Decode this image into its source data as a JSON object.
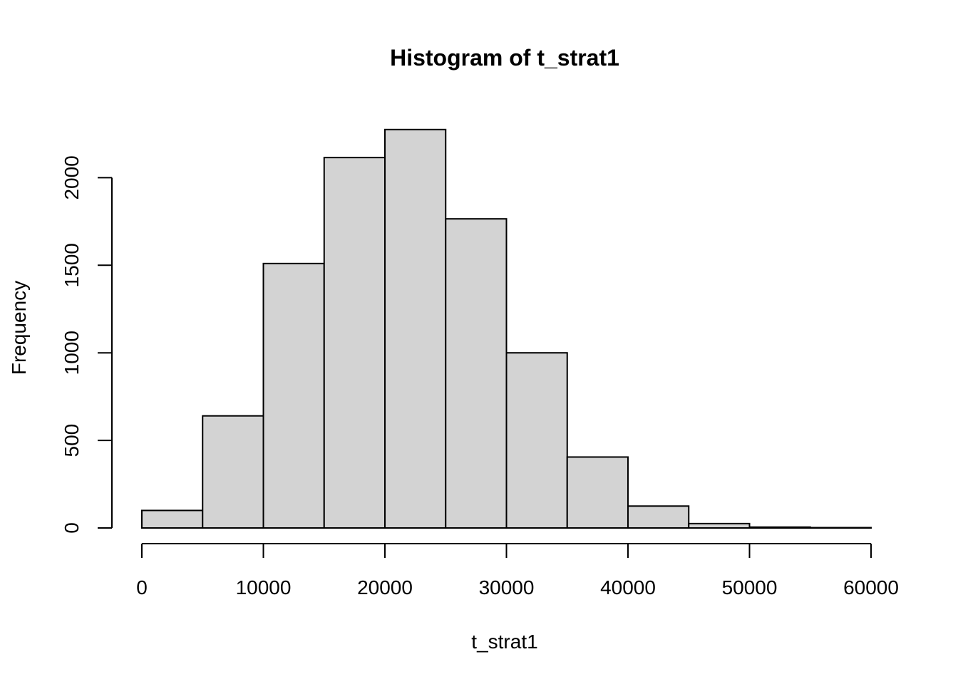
{
  "chart_data": {
    "type": "bar",
    "title": "Histogram of t_strat1",
    "xlabel": "t_strat1",
    "ylabel": "Frequency",
    "bin_edges": [
      0,
      5000,
      10000,
      15000,
      20000,
      25000,
      30000,
      35000,
      40000,
      45000,
      50000,
      55000,
      60000
    ],
    "values": [
      100,
      640,
      1510,
      2115,
      2275,
      1765,
      1000,
      405,
      125,
      25,
      5,
      2
    ],
    "xlim": [
      0,
      60000
    ],
    "ylim": [
      0,
      2275
    ],
    "x_ticks": [
      0,
      10000,
      20000,
      30000,
      40000,
      50000,
      60000
    ],
    "y_ticks": [
      0,
      500,
      1000,
      1500,
      2000
    ],
    "bar_fill": "#d3d3d3",
    "bar_stroke": "#000000",
    "grid": false,
    "legend": "none"
  }
}
